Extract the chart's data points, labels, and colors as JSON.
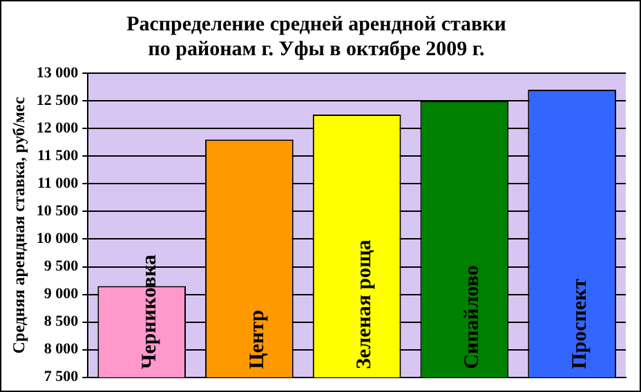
{
  "chart_data": {
    "type": "bar",
    "title": "Распределение средней арендной ставки\nпо районам г. Уфы в октябре 2009 г.",
    "ylabel": "Средняя арендная ставка, руб/мес",
    "categories": [
      "Черниковка",
      "Центр",
      "Зеленая роща",
      "Сипайлово",
      "Проспект"
    ],
    "values": [
      9150,
      11800,
      12250,
      12500,
      12700
    ],
    "colors": [
      "#ff99cc",
      "#ff9900",
      "#ffff00",
      "#008000",
      "#3366ff"
    ],
    "ylim": [
      7500,
      13000
    ],
    "yticks": [
      {
        "value": 7500,
        "label": "7 500"
      },
      {
        "value": 8000,
        "label": "8 000"
      },
      {
        "value": 8500,
        "label": "8 500"
      },
      {
        "value": 9000,
        "label": "9 000"
      },
      {
        "value": 9500,
        "label": "9 500"
      },
      {
        "value": 10000,
        "label": "10 000"
      },
      {
        "value": 10500,
        "label": "10 500"
      },
      {
        "value": 11000,
        "label": "11 000"
      },
      {
        "value": 11500,
        "label": "11 500"
      },
      {
        "value": 12000,
        "label": "12 000"
      },
      {
        "value": 12500,
        "label": "12 500"
      },
      {
        "value": 13000,
        "label": "13 000"
      }
    ],
    "grid": "y",
    "legend": false
  }
}
